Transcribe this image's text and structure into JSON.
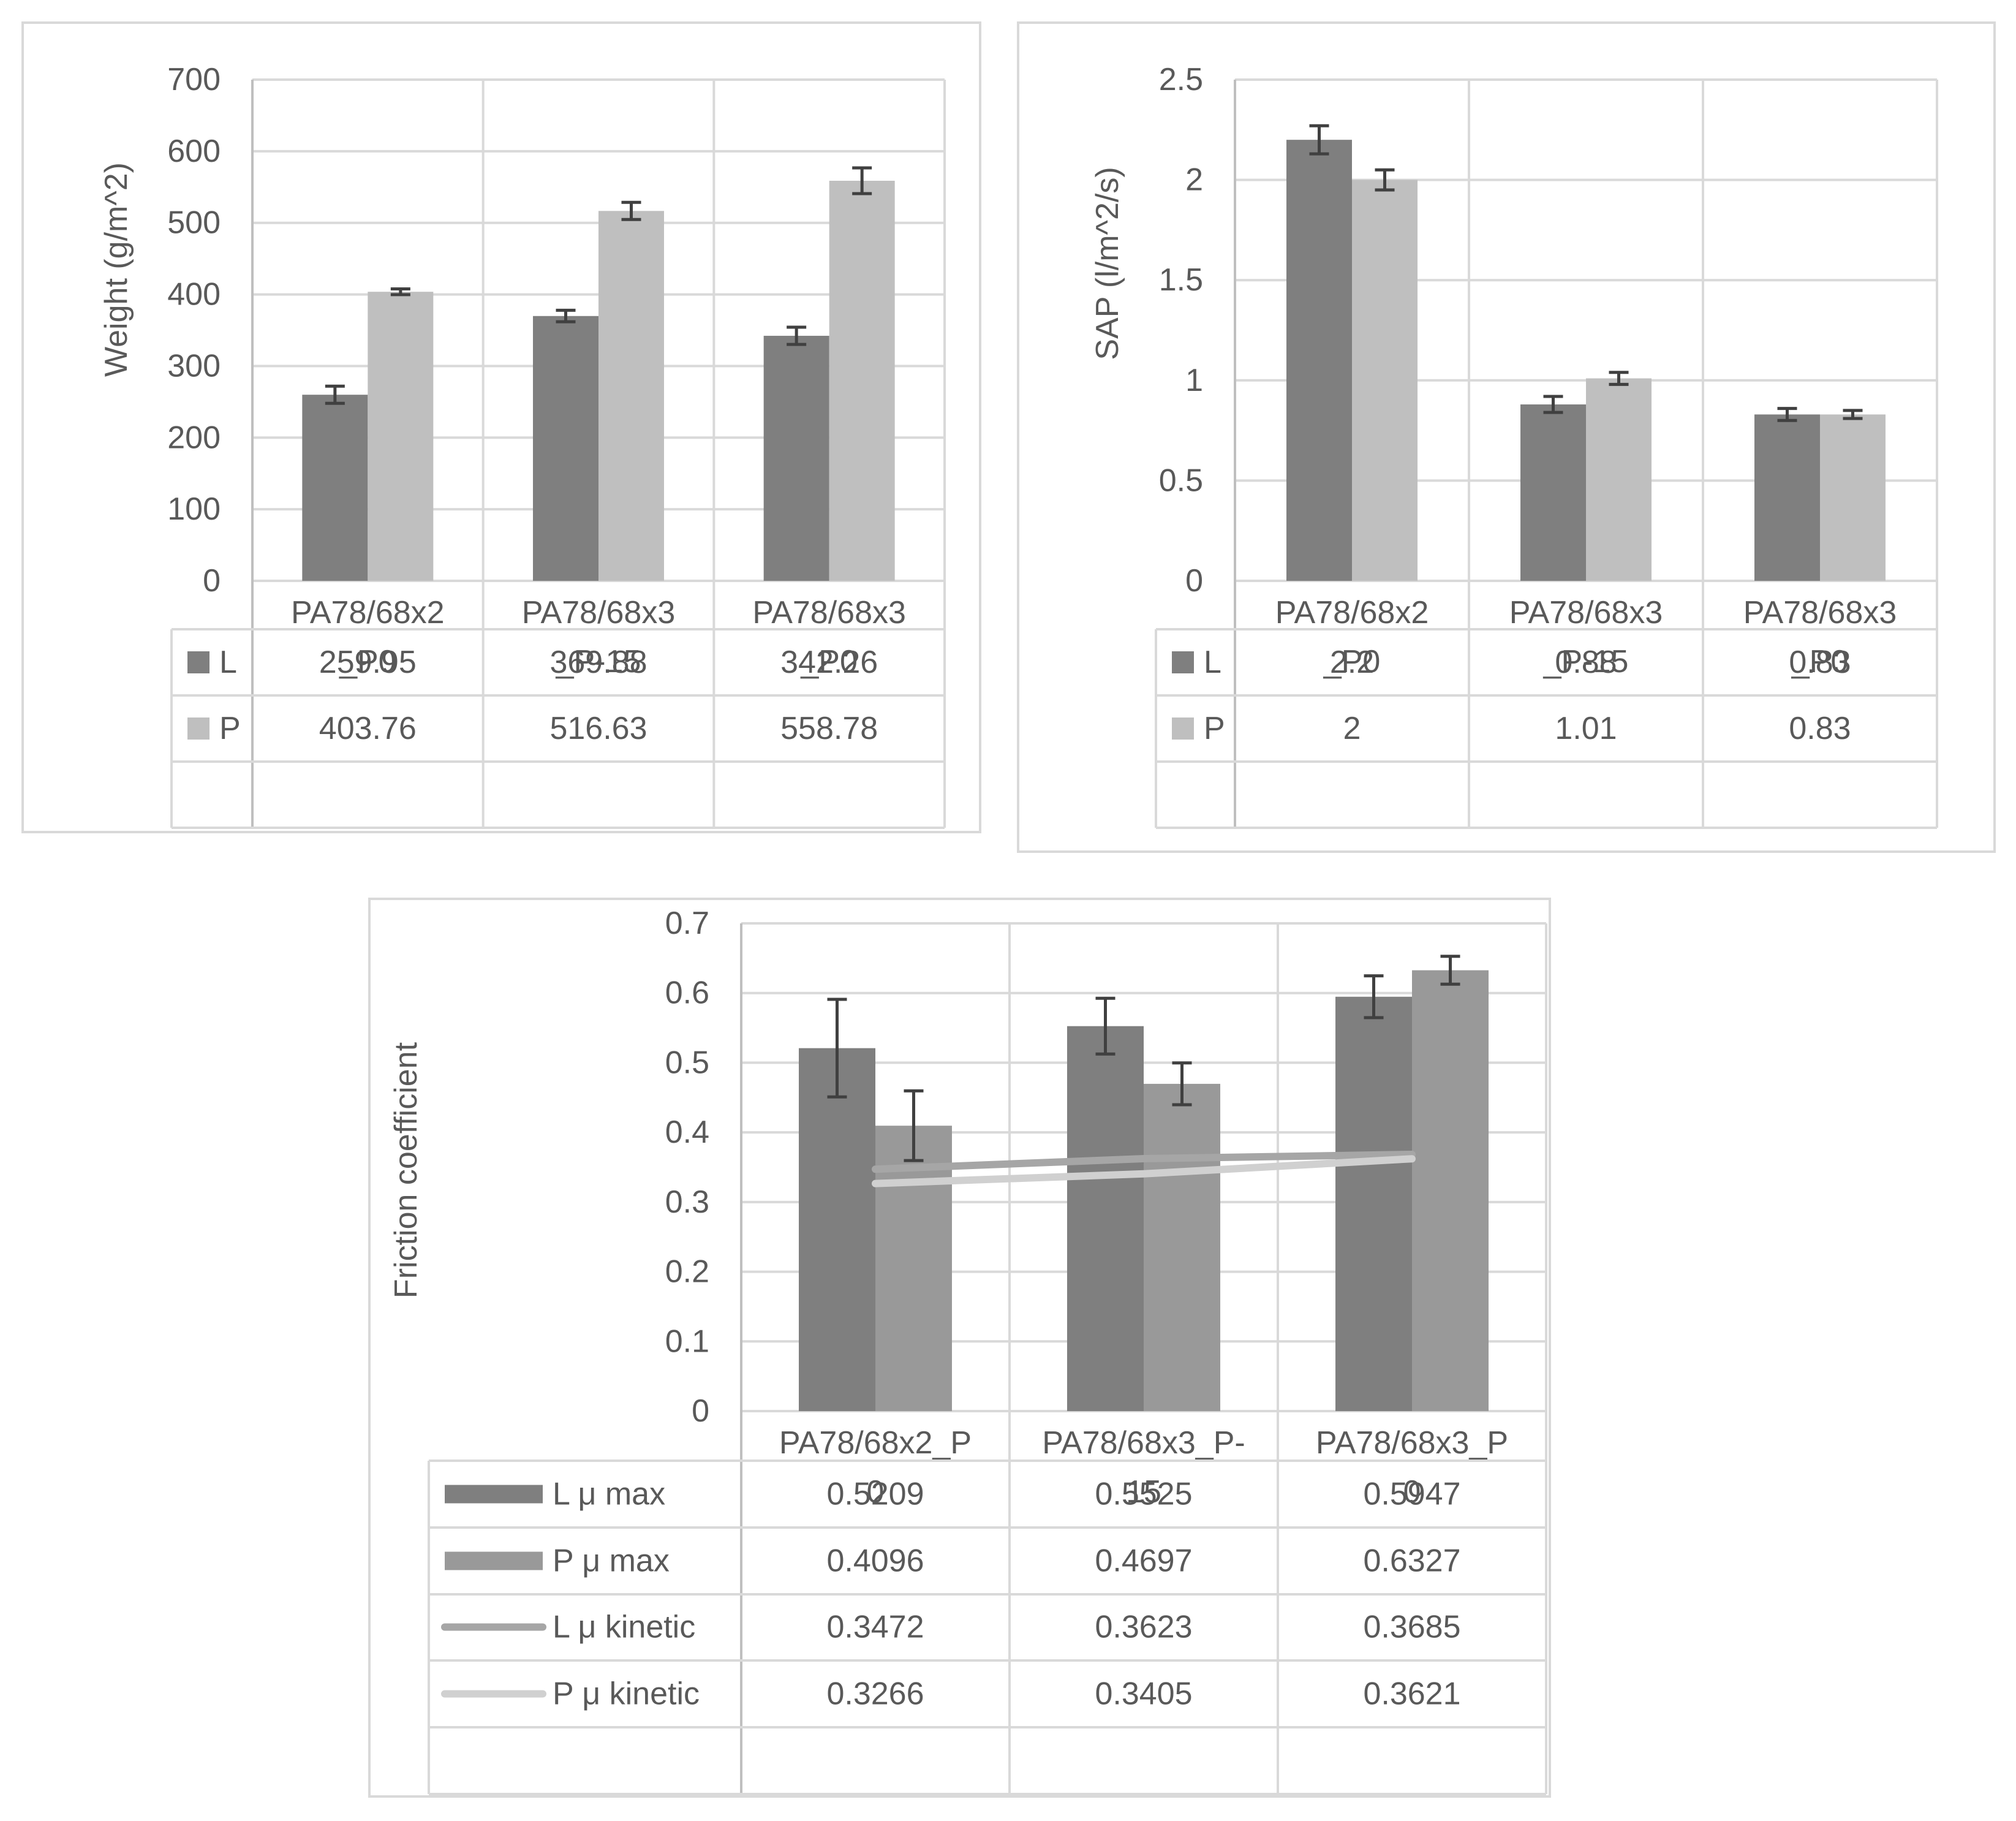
{
  "colors": {
    "frame": "#d9d9d9",
    "grid": "#d9d9d9",
    "text": "#595959",
    "axis": "#bfbfbf",
    "error": "#404040",
    "L": "#7f7f7f",
    "P": "#bfbfbf",
    "L_max": "#7f7f7f",
    "P_max": "#999999",
    "L_kin": "#a6a6a6",
    "P_kin": "#d0d0d0"
  },
  "chart_data": [
    {
      "type": "bar",
      "title": "",
      "ylabel": "Weight (g/m^2)",
      "xlabel": "",
      "ylim": [
        0,
        700
      ],
      "yticks": [
        0,
        100,
        200,
        300,
        400,
        500,
        600,
        700
      ],
      "ytick_labels": [
        "0",
        "100",
        "200",
        "300",
        "400",
        "500",
        "600",
        "700"
      ],
      "grid": true,
      "legend": "data table",
      "categories": [
        [
          "PA78/68x2",
          "_P0"
        ],
        [
          "PA78/68x3",
          "_P-15"
        ],
        [
          "PA78/68x3",
          "_P0"
        ]
      ],
      "series": [
        {
          "name": "L",
          "values": [
            259.95,
            369.88,
            342.26
          ],
          "value_labels": [
            "259.95",
            "369.88",
            "342.26"
          ],
          "errors": [
            12,
            8,
            12
          ],
          "color_key": "L"
        },
        {
          "name": "P",
          "values": [
            403.76,
            516.63,
            558.78
          ],
          "value_labels": [
            "403.76",
            "516.63",
            "558.78"
          ],
          "errors": [
            4,
            12,
            18
          ],
          "color_key": "P"
        }
      ]
    },
    {
      "type": "bar",
      "title": "",
      "ylabel": "SAP (l/m^2/s)",
      "xlabel": "",
      "ylim": [
        0,
        2.5
      ],
      "yticks": [
        0,
        0.5,
        1,
        1.5,
        2,
        2.5
      ],
      "ytick_labels": [
        "0",
        "0.5",
        "1",
        "1.5",
        "2",
        "2.5"
      ],
      "grid": true,
      "legend": "data table",
      "categories": [
        [
          "PA78/68x2",
          "_P0"
        ],
        [
          "PA78/68x3",
          "_P-15"
        ],
        [
          "PA78/68x3",
          "_P0"
        ]
      ],
      "series": [
        {
          "name": "L",
          "values": [
            2.2,
            0.88,
            0.83
          ],
          "value_labels": [
            "2.2",
            "0.88",
            "0.83"
          ],
          "errors": [
            0.07,
            0.04,
            0.03
          ],
          "color_key": "L"
        },
        {
          "name": "P",
          "values": [
            2,
            1.01,
            0.83
          ],
          "value_labels": [
            "2",
            "1.01",
            "0.83"
          ],
          "errors": [
            0.05,
            0.03,
            0.02
          ],
          "color_key": "P"
        }
      ]
    },
    {
      "type": "bar",
      "title": "",
      "ylabel": "Friction coefficient",
      "xlabel": "",
      "ylim": [
        0,
        0.7
      ],
      "yticks": [
        0,
        0.1,
        0.2,
        0.3,
        0.4,
        0.5,
        0.6,
        0.7
      ],
      "ytick_labels": [
        "0",
        "0.1",
        "0.2",
        "0.3",
        "0.4",
        "0.5",
        "0.6",
        "0.7"
      ],
      "grid": true,
      "legend": "data table",
      "categories": [
        [
          "PA78/68x2_P",
          "0"
        ],
        [
          "PA78/68x3_P-",
          "15"
        ],
        [
          "PA78/68x3_P",
          "0"
        ]
      ],
      "series": [
        {
          "name": "L μ max",
          "kind": "bar",
          "values": [
            0.5209,
            0.5525,
            0.5947
          ],
          "value_labels": [
            "0.5209",
            "0.5525",
            "0.5947"
          ],
          "errors": [
            0.07,
            0.04,
            0.03
          ],
          "color_key": "L_max"
        },
        {
          "name": "P μ max",
          "kind": "bar",
          "values": [
            0.4096,
            0.4697,
            0.6327
          ],
          "value_labels": [
            "0.4096",
            "0.4697",
            "0.6327"
          ],
          "errors": [
            0.05,
            0.03,
            0.02
          ],
          "color_key": "P_max"
        },
        {
          "name": "L μ kinetic",
          "kind": "line",
          "values": [
            0.3472,
            0.3623,
            0.3685
          ],
          "value_labels": [
            "0.3472",
            "0.3623",
            "0.3685"
          ],
          "color_key": "L_kin"
        },
        {
          "name": "P μ kinetic",
          "kind": "line",
          "values": [
            0.3266,
            0.3405,
            0.3621
          ],
          "value_labels": [
            "0.3266",
            "0.3405",
            "0.3621"
          ],
          "color_key": "P_kin"
        }
      ]
    }
  ]
}
